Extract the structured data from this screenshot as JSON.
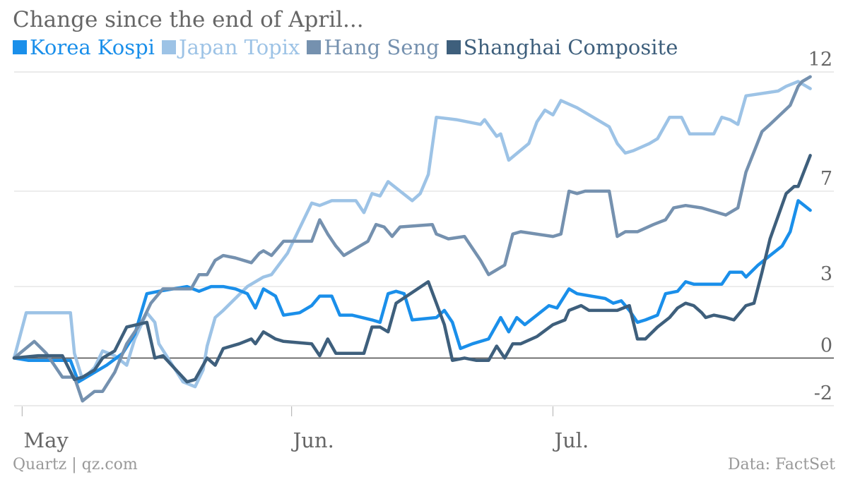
{
  "chart_data": {
    "type": "line",
    "title": "Change since the end of April...",
    "ylim": [
      -2,
      12
    ],
    "xlim": [
      0,
      100
    ],
    "y_ticks": [
      {
        "value": 12,
        "label": "12"
      },
      {
        "value": 7,
        "label": "7"
      },
      {
        "value": 3,
        "label": "3"
      },
      {
        "value": 0,
        "label": "0"
      },
      {
        "value": -2,
        "label": "-2"
      }
    ],
    "x_ticks": [
      {
        "value": 1,
        "label": "May"
      },
      {
        "value": 34.5,
        "label": "Jun."
      },
      {
        "value": 67,
        "label": "Jul."
      }
    ],
    "grid": "horizontal",
    "legend": "top-left",
    "series": [
      {
        "name": "Korea Kospi",
        "color": "#1A8FEA",
        "points": [
          [
            0,
            0
          ],
          [
            1.8,
            -0.1
          ],
          [
            7,
            -0.1
          ],
          [
            8,
            -1.0
          ],
          [
            10,
            -0.6
          ],
          [
            11.5,
            -0.3
          ],
          [
            13.5,
            0.2
          ],
          [
            15,
            1.0
          ],
          [
            16.5,
            2.7
          ],
          [
            18,
            2.8
          ],
          [
            21.5,
            3.0
          ],
          [
            23,
            2.8
          ],
          [
            24.5,
            3.0
          ],
          [
            26,
            3.0
          ],
          [
            27.5,
            2.9
          ],
          [
            29,
            2.7
          ],
          [
            30,
            2.1
          ],
          [
            31,
            2.9
          ],
          [
            32.5,
            2.6
          ],
          [
            33.5,
            1.8
          ],
          [
            35.5,
            1.9
          ],
          [
            37,
            2.2
          ],
          [
            38,
            2.6
          ],
          [
            39.5,
            2.6
          ],
          [
            40.5,
            1.8
          ],
          [
            42,
            1.8
          ],
          [
            44.5,
            1.6
          ],
          [
            45.5,
            1.5
          ],
          [
            46.5,
            2.7
          ],
          [
            47.5,
            2.8
          ],
          [
            48.5,
            2.7
          ],
          [
            49.5,
            1.6
          ],
          [
            52.5,
            1.7
          ],
          [
            53.5,
            2.0
          ],
          [
            54.5,
            1.5
          ],
          [
            55.5,
            0.4
          ],
          [
            57,
            0.6
          ],
          [
            59,
            0.8
          ],
          [
            60.5,
            1.7
          ],
          [
            61.5,
            1.1
          ],
          [
            62.5,
            1.7
          ],
          [
            63.5,
            1.4
          ],
          [
            65,
            1.8
          ],
          [
            66.5,
            2.2
          ],
          [
            67.5,
            2.1
          ],
          [
            69,
            2.9
          ],
          [
            70,
            2.7
          ],
          [
            73.5,
            2.5
          ],
          [
            74.5,
            2.3
          ],
          [
            75.5,
            2.4
          ],
          [
            76.5,
            2.0
          ],
          [
            77.5,
            1.5
          ],
          [
            78.5,
            1.6
          ],
          [
            80,
            1.8
          ],
          [
            81,
            2.7
          ],
          [
            82.5,
            2.8
          ],
          [
            83.5,
            3.2
          ],
          [
            84.5,
            3.1
          ],
          [
            88,
            3.1
          ],
          [
            89,
            3.6
          ],
          [
            90.5,
            3.6
          ],
          [
            91,
            3.4
          ],
          [
            92.5,
            3.9
          ],
          [
            94,
            4.3
          ],
          [
            95.5,
            4.7
          ],
          [
            96.5,
            5.3
          ],
          [
            97.5,
            6.6
          ],
          [
            99,
            6.2
          ]
        ]
      },
      {
        "name": "Japan Topix",
        "color": "#9DC3E6",
        "points": [
          [
            0,
            0
          ],
          [
            1.5,
            1.9
          ],
          [
            7,
            1.9
          ],
          [
            7.5,
            0.2
          ],
          [
            8.5,
            -0.9
          ],
          [
            10,
            -0.4
          ],
          [
            11,
            0.3
          ],
          [
            12.5,
            0.1
          ],
          [
            14,
            -0.3
          ],
          [
            15,
            0.8
          ],
          [
            16.5,
            1.9
          ],
          [
            17.5,
            1.5
          ],
          [
            18,
            0.6
          ],
          [
            21,
            -1.0
          ],
          [
            22.5,
            -1.2
          ],
          [
            23.5,
            -0.5
          ],
          [
            24,
            0.5
          ],
          [
            25,
            1.7
          ],
          [
            26,
            2.0
          ],
          [
            29,
            3.0
          ],
          [
            31,
            3.4
          ],
          [
            32,
            3.5
          ],
          [
            34,
            4.4
          ],
          [
            36,
            5.8
          ],
          [
            37,
            6.5
          ],
          [
            38,
            6.4
          ],
          [
            39.5,
            6.6
          ],
          [
            42.5,
            6.6
          ],
          [
            43.5,
            6.1
          ],
          [
            44.5,
            6.9
          ],
          [
            45.5,
            6.8
          ],
          [
            46.5,
            7.4
          ],
          [
            48,
            7.0
          ],
          [
            49.5,
            6.6
          ],
          [
            50.5,
            6.9
          ],
          [
            51.5,
            7.7
          ],
          [
            52.5,
            10.1
          ],
          [
            55,
            10.0
          ],
          [
            58,
            9.8
          ],
          [
            58.5,
            10.0
          ],
          [
            60,
            9.3
          ],
          [
            60.5,
            9.4
          ],
          [
            61.5,
            8.3
          ],
          [
            64,
            9.0
          ],
          [
            65,
            9.9
          ],
          [
            66,
            10.4
          ],
          [
            67,
            10.2
          ],
          [
            68,
            10.8
          ],
          [
            70,
            10.5
          ],
          [
            72,
            10.1
          ],
          [
            74,
            9.7
          ],
          [
            75,
            9.0
          ],
          [
            76,
            8.6
          ],
          [
            77,
            8.7
          ],
          [
            79,
            9.0
          ],
          [
            80,
            9.2
          ],
          [
            81.5,
            10.1
          ],
          [
            83,
            10.1
          ],
          [
            84,
            9.4
          ],
          [
            87,
            9.4
          ],
          [
            88,
            10.1
          ],
          [
            89,
            10.0
          ],
          [
            90,
            9.8
          ],
          [
            91,
            11.0
          ],
          [
            95,
            11.2
          ],
          [
            96,
            11.4
          ],
          [
            97.5,
            11.6
          ],
          [
            99,
            11.3
          ]
        ]
      },
      {
        "name": "Hang Seng",
        "color": "#7591AF",
        "points": [
          [
            0,
            0
          ],
          [
            2.5,
            0.7
          ],
          [
            4,
            0.2
          ],
          [
            6,
            -0.8
          ],
          [
            7.5,
            -0.8
          ],
          [
            8.5,
            -1.8
          ],
          [
            10,
            -1.4
          ],
          [
            11,
            -1.4
          ],
          [
            12.5,
            -0.6
          ],
          [
            14,
            0.6
          ],
          [
            16,
            1.6
          ],
          [
            17,
            2.3
          ],
          [
            18.5,
            2.9
          ],
          [
            22,
            2.9
          ],
          [
            23,
            3.5
          ],
          [
            24,
            3.5
          ],
          [
            25,
            4.1
          ],
          [
            26,
            4.3
          ],
          [
            27.5,
            4.2
          ],
          [
            29.5,
            4.0
          ],
          [
            30.5,
            4.4
          ],
          [
            31,
            4.5
          ],
          [
            32,
            4.3
          ],
          [
            33.5,
            4.9
          ],
          [
            37,
            4.9
          ],
          [
            38,
            5.8
          ],
          [
            39,
            5.2
          ],
          [
            40,
            4.7
          ],
          [
            41,
            4.3
          ],
          [
            44,
            4.9
          ],
          [
            45,
            5.6
          ],
          [
            46,
            5.5
          ],
          [
            47,
            5.1
          ],
          [
            48,
            5.5
          ],
          [
            52,
            5.6
          ],
          [
            52.5,
            5.2
          ],
          [
            54,
            5.0
          ],
          [
            56,
            5.1
          ],
          [
            58,
            4.1
          ],
          [
            59,
            3.5
          ],
          [
            60.5,
            3.8
          ],
          [
            61,
            3.9
          ],
          [
            62,
            5.2
          ],
          [
            63,
            5.3
          ],
          [
            67,
            5.1
          ],
          [
            68,
            5.2
          ],
          [
            69,
            7.0
          ],
          [
            70,
            6.9
          ],
          [
            71,
            7.0
          ],
          [
            74,
            7.0
          ],
          [
            75,
            5.1
          ],
          [
            76,
            5.3
          ],
          [
            77.5,
            5.3
          ],
          [
            79.5,
            5.6
          ],
          [
            81,
            5.8
          ],
          [
            82,
            6.3
          ],
          [
            83.5,
            6.4
          ],
          [
            85.5,
            6.3
          ],
          [
            88.5,
            6.0
          ],
          [
            90,
            6.3
          ],
          [
            91,
            7.8
          ],
          [
            93,
            9.5
          ],
          [
            94,
            9.8
          ],
          [
            96.5,
            10.6
          ],
          [
            97.5,
            11.4
          ],
          [
            98,
            11.6
          ],
          [
            99,
            11.8
          ]
        ]
      },
      {
        "name": "Shanghai Composite",
        "color": "#3E5F7C",
        "points": [
          [
            0,
            0
          ],
          [
            3,
            0.1
          ],
          [
            6,
            0.1
          ],
          [
            7.5,
            -0.9
          ],
          [
            8.5,
            -0.8
          ],
          [
            10,
            -0.5
          ],
          [
            11,
            0.0
          ],
          [
            12.5,
            0.3
          ],
          [
            14,
            1.3
          ],
          [
            16.5,
            1.5
          ],
          [
            17.5,
            0.0
          ],
          [
            18.5,
            0.1
          ],
          [
            21.5,
            -1.0
          ],
          [
            22.5,
            -0.9
          ],
          [
            24,
            0.0
          ],
          [
            25,
            -0.3
          ],
          [
            26,
            0.4
          ],
          [
            28,
            0.6
          ],
          [
            29.5,
            0.8
          ],
          [
            30,
            0.6
          ],
          [
            31,
            1.1
          ],
          [
            32.5,
            0.8
          ],
          [
            33.5,
            0.7
          ],
          [
            37,
            0.6
          ],
          [
            38,
            0.1
          ],
          [
            39,
            0.8
          ],
          [
            40,
            0.2
          ],
          [
            43.5,
            0.2
          ],
          [
            44.5,
            1.3
          ],
          [
            45.5,
            1.3
          ],
          [
            46.5,
            1.1
          ],
          [
            47.5,
            2.3
          ],
          [
            51.5,
            3.2
          ],
          [
            52.5,
            2.3
          ],
          [
            53.5,
            1.4
          ],
          [
            54.5,
            -0.1
          ],
          [
            56,
            0.0
          ],
          [
            57.5,
            -0.1
          ],
          [
            59,
            -0.1
          ],
          [
            60,
            0.5
          ],
          [
            61,
            0.0
          ],
          [
            62,
            0.6
          ],
          [
            63,
            0.6
          ],
          [
            65,
            0.9
          ],
          [
            67,
            1.4
          ],
          [
            68.5,
            1.6
          ],
          [
            69,
            2.0
          ],
          [
            70.5,
            2.2
          ],
          [
            71.5,
            2.0
          ],
          [
            75,
            2.0
          ],
          [
            76.5,
            2.2
          ],
          [
            77.5,
            0.8
          ],
          [
            78.5,
            0.8
          ],
          [
            80,
            1.3
          ],
          [
            81.5,
            1.7
          ],
          [
            82.5,
            2.1
          ],
          [
            83.5,
            2.3
          ],
          [
            84.5,
            2.2
          ],
          [
            85.5,
            1.9
          ],
          [
            86,
            1.7
          ],
          [
            87,
            1.8
          ],
          [
            88.5,
            1.7
          ],
          [
            89.5,
            1.6
          ],
          [
            91,
            2.2
          ],
          [
            92,
            2.3
          ],
          [
            93,
            3.6
          ],
          [
            94,
            5.0
          ],
          [
            96,
            6.9
          ],
          [
            97,
            7.2
          ],
          [
            97.5,
            7.2
          ],
          [
            99,
            8.5
          ]
        ]
      }
    ]
  },
  "source": {
    "left": "Quartz | qz.com",
    "right": "Data: FactSet"
  }
}
